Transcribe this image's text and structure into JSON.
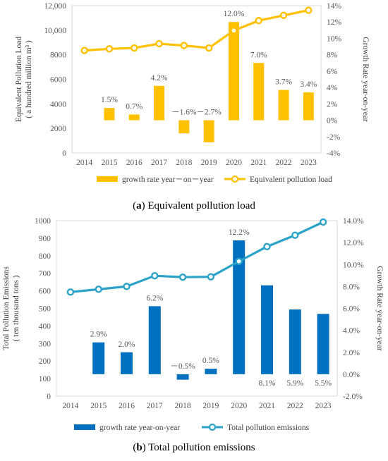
{
  "captions": [
    {
      "letter": "a",
      "text": "Equivalent pollution load"
    },
    {
      "letter": "b",
      "text": "Total pollution emissions"
    }
  ],
  "chart_data": [
    {
      "type": "bar+line",
      "categories": [
        "2014",
        "2015",
        "2016",
        "2017",
        "2018",
        "2019",
        "2020",
        "2021",
        "2022",
        "2023"
      ],
      "left_axis": {
        "label": [
          "Equivalent Pollution Load",
          "( a hundred million m³ )"
        ],
        "ticks": [
          0,
          2000,
          4000,
          6000,
          8000,
          10000,
          12000
        ],
        "tick_labels": [
          "0",
          "2000",
          "4000",
          "6000",
          "8000",
          "10,000",
          "12,000"
        ],
        "range": [
          0,
          12000
        ]
      },
      "right_axis": {
        "label": "Growth Rate year-on-year",
        "ticks": [
          -4,
          -2,
          0,
          2,
          4,
          6,
          8,
          10,
          12,
          14
        ],
        "tick_labels": [
          "-4%",
          "-2%",
          "0%",
          "2%",
          "4%",
          "6%",
          "8%",
          "10%",
          "12%",
          "14%"
        ],
        "range": [
          -4,
          14
        ]
      },
      "series": [
        {
          "name": "growth rate year－on－year",
          "kind": "bar",
          "axis": "right",
          "color": "#FFC000",
          "values": [
            null,
            1.5,
            0.7,
            4.2,
            -1.6,
            -2.7,
            12.0,
            7.0,
            3.7,
            3.4
          ],
          "labels": [
            "",
            "1.5%",
            "0.7%",
            "4.2%",
            "－1.6%",
            "－2.7%",
            "12.0%",
            "7.0%",
            "3.7%",
            "3.4%"
          ]
        },
        {
          "name": "Equivalent pollution load",
          "kind": "line",
          "axis": "left",
          "color": "#FFC000",
          "values": [
            8350,
            8480,
            8550,
            8900,
            8750,
            8550,
            9970,
            10780,
            11210,
            11620
          ]
        }
      ],
      "legend_position": "bottom",
      "grid": false
    },
    {
      "type": "bar+line",
      "categories": [
        "2014",
        "2015",
        "2016",
        "2017",
        "2018",
        "2019",
        "2020",
        "2021",
        "2022",
        "2023"
      ],
      "left_axis": {
        "label": [
          "Total Pollution Emissions",
          "( ten thousand tons )"
        ],
        "ticks": [
          0,
          100,
          200,
          300,
          400,
          500,
          600,
          700,
          800,
          900,
          1000
        ],
        "tick_labels": [
          "0",
          "100",
          "200",
          "300",
          "400",
          "500",
          "600",
          "700",
          "800",
          "900",
          "1000"
        ],
        "range": [
          0,
          1000
        ]
      },
      "right_axis": {
        "label": "Growth Rate year-on-year",
        "ticks": [
          -2,
          0,
          2,
          4,
          6,
          8,
          10,
          12,
          14
        ],
        "tick_labels": [
          "-2.0%",
          "0.0%",
          "2.0%",
          "4.0%",
          "6.0%",
          "8.0%",
          "10.0%",
          "12.0%",
          "14.0%"
        ],
        "range": [
          -2,
          14
        ]
      },
      "series": [
        {
          "name": "growth rate year-on-year",
          "kind": "bar",
          "axis": "right",
          "color": "#0070C0",
          "values": [
            null,
            2.9,
            2.0,
            6.2,
            -0.5,
            0.5,
            12.2,
            8.1,
            5.9,
            5.5
          ],
          "labels": [
            "",
            "2.9%",
            "2.0%",
            "6.2%",
            "－0.5%",
            "0.5%",
            "12.2%",
            "8.1%",
            "5.9%",
            "5.5%"
          ]
        },
        {
          "name": "Total pollution emissions",
          "kind": "line",
          "axis": "left",
          "color": "#2BA3C9",
          "values": [
            593,
            609,
            625,
            686,
            678,
            680,
            768,
            852,
            917,
            992
          ]
        }
      ],
      "legend_position": "bottom",
      "grid": false
    }
  ]
}
